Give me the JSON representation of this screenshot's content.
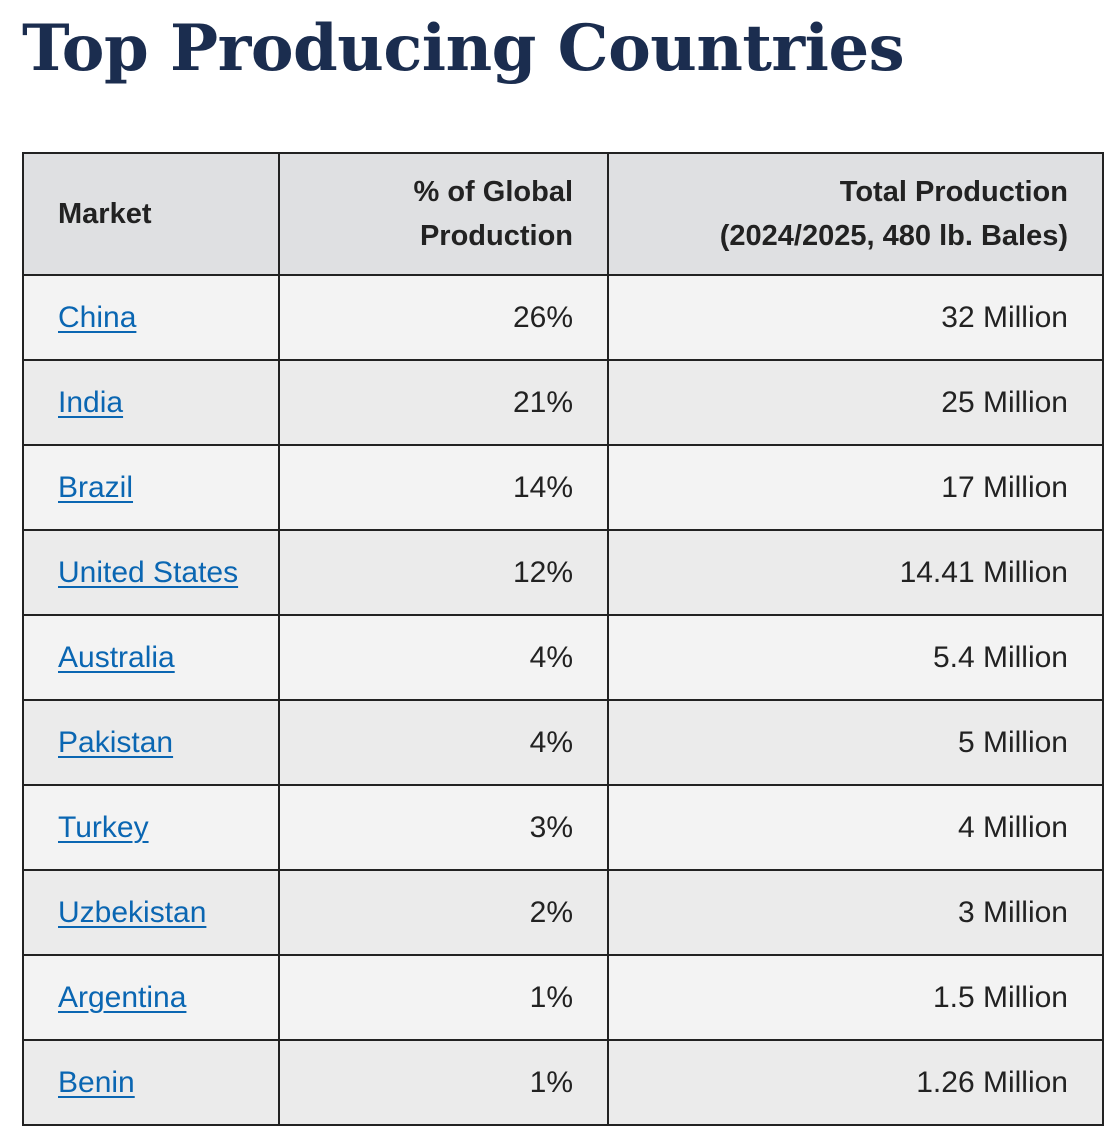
{
  "title": "Top Producing Countries",
  "table": {
    "headers": {
      "market": "Market",
      "pct_line1": "% of Global",
      "pct_line2": "Production",
      "total_line1": "Total Production",
      "total_line2": "(2024/2025, 480 lb. Bales)"
    },
    "rows": [
      {
        "market": "China",
        "pct": "26%",
        "total": "32 Million"
      },
      {
        "market": "India",
        "pct": "21%",
        "total": "25 Million"
      },
      {
        "market": "Brazil",
        "pct": "14%",
        "total": "17 Million"
      },
      {
        "market": "United States",
        "pct": "12%",
        "total": "14.41 Million"
      },
      {
        "market": "Australia",
        "pct": "4%",
        "total": "5.4 Million"
      },
      {
        "market": "Pakistan",
        "pct": "4%",
        "total": "5 Million"
      },
      {
        "market": "Turkey",
        "pct": "3%",
        "total": "4 Million"
      },
      {
        "market": "Uzbekistan",
        "pct": "2%",
        "total": "3 Million"
      },
      {
        "market": "Argentina",
        "pct": "1%",
        "total": "1.5 Million"
      },
      {
        "market": "Benin",
        "pct": "1%",
        "total": "1.26 Million"
      }
    ]
  },
  "colors": {
    "title": "#1b2d4f",
    "link": "#0a66b2",
    "header_bg": "#dfe0e2",
    "row_bg": "#f3f3f3",
    "row_alt_bg": "#ebebeb",
    "border": "#222222"
  }
}
